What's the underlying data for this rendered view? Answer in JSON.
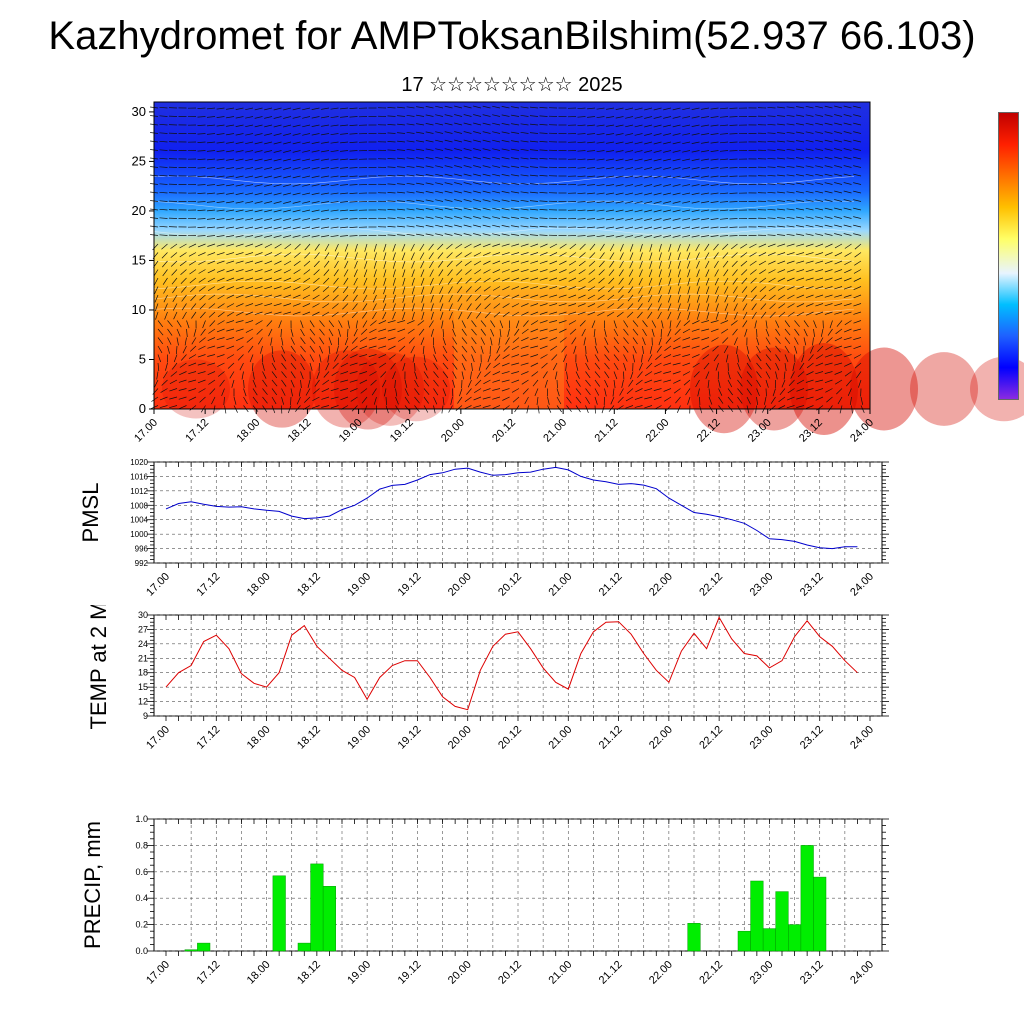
{
  "title": "Kazhydromet for AMPToksanBilshim(52.937 66.103)",
  "subtitle": "17 ☆☆☆☆☆☆☆☆ 2025",
  "x_ticks": [
    "17.00",
    "17.12",
    "18.00",
    "18.12",
    "19.00",
    "19.12",
    "20.00",
    "20.12",
    "21.00",
    "21.12",
    "22.00",
    "22.12",
    "23.00",
    "23.12",
    "24.00"
  ],
  "colors": {
    "pmsl_line": "#0000cc",
    "temp_line": "#dd0000",
    "precip_bar": "#00ee00",
    "precip_edge": "#009900"
  },
  "chart_data": [
    {
      "type": "heatmap",
      "description_key": "temperature-height cross section with wind barbs",
      "y_ticks": [
        "0",
        "5",
        "10",
        "15",
        "20",
        "25",
        "30"
      ],
      "ylim": [
        0,
        31
      ],
      "xlim": [
        "17.00",
        "24.00"
      ],
      "colorbar_colors": [
        "#8a2be2",
        "#0000ff",
        "#1e60ff",
        "#00bfff",
        "#e8f4ff",
        "#ffff66",
        "#ffc000",
        "#ff7000",
        "#ff2000",
        "#c00000"
      ],
      "levels": [
        {
          "height": 0,
          "color": "#ff3010"
        },
        {
          "height": 5,
          "color": "#ff4a10"
        },
        {
          "height": 9,
          "color": "#ff8010"
        },
        {
          "height": 13,
          "color": "#ffc020"
        },
        {
          "height": 16,
          "color": "#ffe860"
        },
        {
          "height": 18,
          "color": "#9ad8ff"
        },
        {
          "height": 20,
          "color": "#30a8ff"
        },
        {
          "height": 22,
          "color": "#1868ff"
        },
        {
          "height": 26,
          "color": "#1020f0"
        },
        {
          "height": 31,
          "color": "#2030e0"
        }
      ]
    },
    {
      "type": "line",
      "ylabel": "PMSL",
      "y_ticks": [
        "992",
        "996",
        "1000",
        "1004",
        "1008",
        "1012",
        "1016",
        "1020"
      ],
      "ylim": [
        992,
        1020
      ],
      "x": [
        0,
        3,
        6,
        9,
        12,
        15,
        18,
        21,
        24,
        27,
        30,
        33,
        36,
        39,
        42,
        45,
        48,
        51,
        54,
        57,
        60,
        63,
        66,
        69,
        72,
        75,
        78,
        81,
        84,
        87,
        90,
        93,
        96,
        99,
        102,
        105,
        108,
        111,
        114,
        117,
        120,
        123,
        126,
        129,
        132,
        135,
        138,
        141,
        144,
        147,
        150,
        153,
        156,
        159,
        162,
        165
      ],
      "values": [
        1007.0,
        1008.5,
        1009.0,
        1008.3,
        1007.7,
        1007.5,
        1007.6,
        1007.0,
        1006.6,
        1006.3,
        1005.0,
        1004.3,
        1004.5,
        1005.0,
        1006.8,
        1008.0,
        1010.0,
        1012.5,
        1013.5,
        1013.8,
        1015.0,
        1016.5,
        1017.0,
        1018.0,
        1018.3,
        1017.2,
        1016.3,
        1016.5,
        1017.0,
        1017.2,
        1018.0,
        1018.5,
        1017.8,
        1016.0,
        1015.0,
        1014.5,
        1013.8,
        1014.0,
        1013.6,
        1012.6,
        1010.0,
        1008.0,
        1006.0,
        1005.5,
        1004.8,
        1004.0,
        1003.0,
        1001.0,
        998.7,
        998.5,
        998.0,
        997.0,
        996.2,
        996.0,
        996.5,
        996.5
      ]
    },
    {
      "type": "line",
      "ylabel": "TEMP at 2 M",
      "y_ticks": [
        "9",
        "12",
        "15",
        "18",
        "21",
        "24",
        "27",
        "30"
      ],
      "ylim": [
        9,
        30
      ],
      "x": [
        0,
        3,
        6,
        9,
        12,
        15,
        18,
        21,
        24,
        27,
        30,
        33,
        36,
        39,
        42,
        45,
        48,
        51,
        54,
        57,
        60,
        63,
        66,
        69,
        72,
        75,
        78,
        81,
        84,
        87,
        90,
        93,
        96,
        99,
        102,
        105,
        108,
        111,
        114,
        117,
        120,
        123,
        126,
        129,
        132,
        135,
        138,
        141,
        144,
        147,
        150,
        153,
        156,
        159,
        162,
        165
      ],
      "values": [
        15.0,
        18.0,
        19.5,
        24.5,
        25.8,
        23.0,
        17.8,
        15.8,
        15.0,
        18.0,
        25.8,
        27.8,
        23.5,
        21.0,
        18.5,
        17.0,
        12.5,
        17.0,
        19.5,
        20.5,
        20.5,
        17.0,
        13.0,
        11.0,
        10.3,
        18.5,
        23.5,
        26.0,
        26.5,
        23.0,
        19.0,
        16.0,
        14.6,
        22.0,
        26.5,
        28.5,
        28.6,
        26.0,
        22.0,
        18.5,
        16.0,
        22.5,
        26.2,
        23.0,
        29.5,
        25.0,
        22.0,
        21.5,
        19.0,
        20.5,
        25.5,
        28.8,
        25.5,
        23.5,
        20.5,
        18.0
      ]
    },
    {
      "type": "bar",
      "ylabel": "PRECIP, mm",
      "y_ticks": [
        "0.0",
        "0.2",
        "0.4",
        "0.6",
        "0.8",
        "1.0"
      ],
      "ylim": [
        0,
        1.0
      ],
      "x": [
        0,
        3,
        6,
        9,
        12,
        15,
        18,
        21,
        24,
        27,
        30,
        33,
        36,
        39,
        42,
        45,
        48,
        51,
        54,
        57,
        60,
        63,
        66,
        69,
        72,
        75,
        78,
        81,
        84,
        87,
        90,
        93,
        96,
        99,
        102,
        105,
        108,
        111,
        114,
        117,
        120,
        123,
        126,
        129,
        132,
        135,
        138,
        141,
        144,
        147,
        150,
        153,
        156,
        159,
        162,
        165
      ],
      "values": [
        0,
        0,
        0.01,
        0.06,
        0,
        0,
        0,
        0,
        0,
        0.57,
        0,
        0.06,
        0.66,
        0.49,
        0,
        0,
        0,
        0,
        0,
        0,
        0,
        0,
        0,
        0,
        0,
        0,
        0,
        0,
        0,
        0,
        0,
        0,
        0,
        0,
        0,
        0,
        0,
        0,
        0,
        0,
        0,
        0,
        0.21,
        0,
        0,
        0,
        0.15,
        0.53,
        0.17,
        0.45,
        0.2,
        0.8,
        0.56,
        0,
        0,
        0
      ]
    }
  ]
}
